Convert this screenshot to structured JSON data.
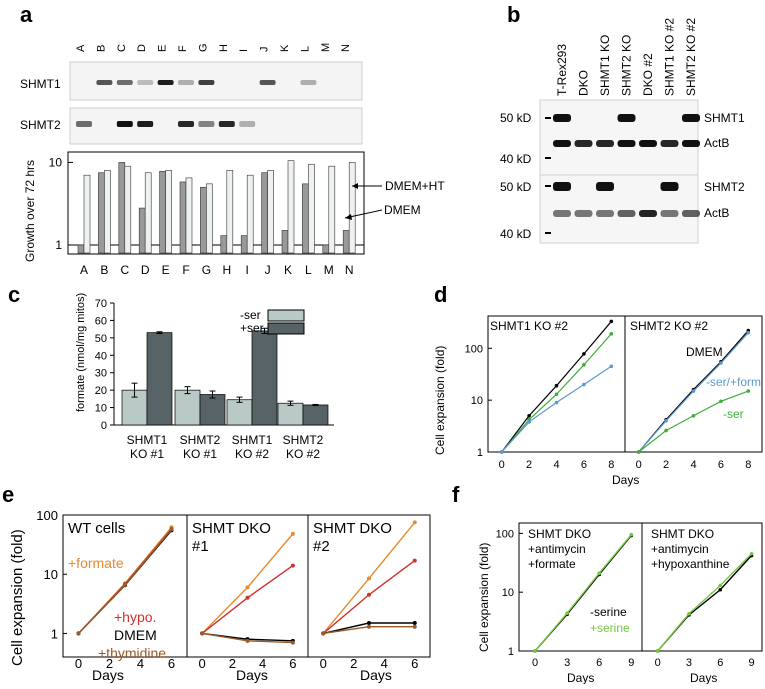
{
  "panels": {
    "a": {
      "label": "a",
      "lanes": [
        "A",
        "B",
        "C",
        "D",
        "E",
        "F",
        "G",
        "H",
        "I",
        "J",
        "K",
        "L",
        "M",
        "N"
      ],
      "blots": [
        "SHMT1",
        "SHMT2"
      ],
      "ylabel": "Growth over 72 hrs",
      "yticks": [
        "1",
        "10"
      ],
      "legend_ht": "DMEM+HT",
      "legend_dmem": "DMEM",
      "chart_data": {
        "type": "bar",
        "categories": [
          "A",
          "B",
          "C",
          "D",
          "E",
          "F",
          "G",
          "H",
          "I",
          "J",
          "K",
          "L",
          "M",
          "N"
        ],
        "series": [
          {
            "name": "DMEM",
            "values": [
              1.0,
              7.5,
              10.0,
              2.8,
              7.8,
              5.8,
              5.0,
              1.3,
              1.3,
              7.5,
              1.5,
              5.5,
              1.0,
              1.5
            ]
          },
          {
            "name": "DMEM+HT",
            "values": [
              7.0,
              8.0,
              9.0,
              7.5,
              8.0,
              6.5,
              5.5,
              8.0,
              7.0,
              8.0,
              10.5,
              9.5,
              9.0,
              10.0
            ]
          }
        ],
        "yscale": "log",
        "ylim": [
          0.8,
          13
        ]
      }
    },
    "b": {
      "label": "b",
      "lanes": [
        "T-Rex293",
        "DKO",
        "SHMT1 KO",
        "SHMT2 KO",
        "DKO #2",
        "SHMT1 KO #2",
        "SHMT2 KO #2"
      ],
      "markers_top": [
        "50 kD",
        "40 kD"
      ],
      "markers_bottom": [
        "50 kD",
        "40 kD"
      ],
      "bands_top": [
        "SHMT1",
        "ActB"
      ],
      "bands_bottom": [
        "SHMT2",
        "ActB"
      ]
    },
    "c": {
      "label": "c",
      "ylabel": "formate (nmol/mg mitos)",
      "yticks": [
        "0",
        "10",
        "20",
        "30",
        "40",
        "50",
        "60",
        "70"
      ],
      "legend": [
        "-ser",
        "+ser"
      ],
      "colors": {
        "minus": "#b9c9c6",
        "plus": "#566265"
      },
      "group_line1": [
        "SHMT1",
        "SHMT2",
        "SHMT1",
        "SHMT2"
      ],
      "group_line2": [
        "KO #1",
        "KO #1",
        "KO #2",
        "KO #2"
      ],
      "chart_data": {
        "type": "bar",
        "categories": [
          "SHMT1 KO #1",
          "SHMT2 KO #1",
          "SHMT1 KO #2",
          "SHMT2 KO #2"
        ],
        "series": [
          {
            "name": "-ser",
            "values": [
              20,
              20,
              14.5,
              12.5
            ],
            "err": [
              4,
              2,
              1.5,
              1.2
            ]
          },
          {
            "name": "+ser",
            "values": [
              53,
              17.5,
              54,
              11.5
            ],
            "err": [
              0.5,
              2,
              1.5,
              0.3
            ]
          }
        ],
        "ylim": [
          0,
          70
        ]
      }
    },
    "d": {
      "label": "d",
      "ylabel": "Cell expansion (fold)",
      "xlabel": "Days",
      "yticks": [
        "1",
        "10",
        "100"
      ],
      "xticks": [
        "0",
        "2",
        "4",
        "6",
        "8"
      ],
      "titles": [
        "SHMT1 KO #2",
        "SHMT2 KO #2"
      ],
      "ann_dmem": "DMEM",
      "ann_form": "-ser/+form",
      "ann_ser": "-ser",
      "chart_data": {
        "type": "line",
        "yscale": "log",
        "x": [
          0,
          2,
          4,
          6,
          8
        ],
        "panels": [
          {
            "title": "SHMT1 KO #2",
            "series": [
              {
                "name": "DMEM",
                "color": "#000000",
                "values": [
                  1,
                  5,
                  19,
                  78,
                  330
                ]
              },
              {
                "name": "-ser",
                "color": "#3fae3a",
                "values": [
                  1,
                  4.2,
                  13,
                  48,
                  190
                ]
              },
              {
                "name": "-ser/+form",
                "color": "#5b98d0",
                "values": [
                  1,
                  3.8,
                  9,
                  20,
                  45
                ]
              }
            ]
          },
          {
            "title": "SHMT2 KO #2",
            "series": [
              {
                "name": "DMEM",
                "color": "#000000",
                "values": [
                  1,
                  4.2,
                  16,
                  55,
                  220
                ]
              },
              {
                "name": "-ser/+form",
                "color": "#5b98d0",
                "values": [
                  1,
                  4,
                  15,
                  52,
                  200
                ]
              },
              {
                "name": "-ser",
                "color": "#3fae3a",
                "values": [
                  1,
                  2.6,
                  5,
                  9.5,
                  15
                ]
              }
            ]
          }
        ]
      }
    },
    "e": {
      "label": "e",
      "ylabel": "Cell expansion (fold)",
      "xlabel": "Days",
      "yticks": [
        "1",
        "10",
        "100"
      ],
      "xticks": [
        "0",
        "2",
        "4",
        "6"
      ],
      "titles": [
        "WT cells",
        "SHMT DKO",
        "SHMT DKO"
      ],
      "subtitles": [
        "",
        "#1",
        "#2"
      ],
      "ann_formate": "+formate",
      "ann_hypo": "+hypo.",
      "ann_dmem": "DMEM",
      "ann_thy": "+thymidine",
      "chart_data": {
        "type": "line",
        "yscale": "log",
        "x": [
          0,
          3,
          6
        ],
        "panels": [
          {
            "title": "WT cells",
            "series": [
              {
                "name": "+formate",
                "color": "#e68a2e",
                "values": [
                  1,
                  7,
                  62
                ]
              },
              {
                "name": "+hypo.",
                "color": "#d2302d",
                "values": [
                  1,
                  6.8,
                  58
                ]
              },
              {
                "name": "DMEM",
                "color": "#000000",
                "values": [
                  1,
                  6.5,
                  55
                ]
              },
              {
                "name": "+thymidine",
                "color": "#9a5b2a",
                "values": [
                  1,
                  6.6,
                  57
                ]
              }
            ]
          },
          {
            "title": "SHMT DKO #1",
            "series": [
              {
                "name": "+formate",
                "color": "#e68a2e",
                "values": [
                  1,
                  6,
                  48
                ]
              },
              {
                "name": "+hypo.",
                "color": "#d2302d",
                "values": [
                  1,
                  4,
                  14
                ]
              },
              {
                "name": "DMEM",
                "color": "#000000",
                "values": [
                  1,
                  0.8,
                  0.75
                ]
              },
              {
                "name": "+thymidine",
                "color": "#9a5b2a",
                "values": [
                  1,
                  0.75,
                  0.7
                ]
              }
            ]
          },
          {
            "title": "SHMT DKO #2",
            "series": [
              {
                "name": "+formate",
                "color": "#e68a2e",
                "values": [
                  1,
                  8.5,
                  75
                ]
              },
              {
                "name": "+hypo.",
                "color": "#d2302d",
                "values": [
                  1,
                  4.5,
                  17
                ]
              },
              {
                "name": "DMEM",
                "color": "#000000",
                "values": [
                  1,
                  1.5,
                  1.5
                ]
              },
              {
                "name": "+thymidine",
                "color": "#9a5b2a",
                "values": [
                  1,
                  1.3,
                  1.3
                ]
              }
            ]
          }
        ]
      }
    },
    "f": {
      "label": "f",
      "ylabel": "Cell expansion (fold)",
      "xlabel": "Days",
      "yticks": [
        "1",
        "10",
        "100"
      ],
      "xticks": [
        "0",
        "3",
        "6",
        "9"
      ],
      "title_lines": [
        [
          "SHMT DKO",
          "+antimycin",
          "+formate"
        ],
        [
          "SHMT DKO",
          "+antimycin",
          "+hypoxanthine"
        ]
      ],
      "ann_minus": "-serine",
      "ann_plus": "+serine",
      "chart_data": {
        "type": "line",
        "yscale": "log",
        "x": [
          0,
          3,
          6,
          9
        ],
        "panels": [
          {
            "title": "SHMT DKO +antimycin +formate",
            "series": [
              {
                "name": "-serine",
                "color": "#000000",
                "values": [
                  1,
                  4.2,
                  20,
                  92
                ]
              },
              {
                "name": "+serine",
                "color": "#73c93f",
                "values": [
                  1,
                  4.4,
                  21,
                  95
                ]
              }
            ]
          },
          {
            "title": "SHMT DKO +antimycin +hypoxanthine",
            "series": [
              {
                "name": "-serine",
                "color": "#000000",
                "values": [
                  1,
                  4.1,
                  11,
                  42
                ]
              },
              {
                "name": "+serine",
                "color": "#73c93f",
                "values": [
                  1,
                  4.3,
                  13,
                  45
                ]
              }
            ]
          }
        ]
      }
    }
  }
}
